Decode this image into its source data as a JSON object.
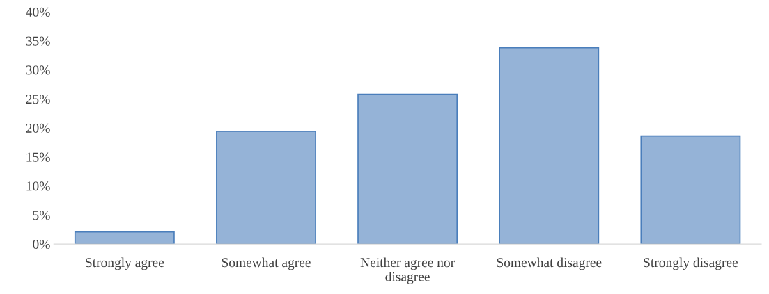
{
  "chart_data": {
    "type": "bar",
    "categories": [
      "Strongly agree",
      "Somewhat agree",
      "Neither agree nor disagree",
      "Somewhat disagree",
      "Strongly disagree"
    ],
    "values": [
      0.021,
      0.194,
      0.258,
      0.338,
      0.186
    ],
    "color": "#95b3d7",
    "ylim": [
      0,
      0.4
    ],
    "yticks": [
      {
        "value": 0,
        "label": "0%"
      },
      {
        "value": 0.05,
        "label": "5%"
      },
      {
        "value": 0.1,
        "label": "10%"
      },
      {
        "value": 0.15,
        "label": "15%"
      },
      {
        "value": 0.2,
        "label": "20%"
      },
      {
        "value": 0.25,
        "label": "25%"
      },
      {
        "value": 0.3,
        "label": "30%"
      },
      {
        "value": 0.35,
        "label": "35%"
      },
      {
        "value": 0.4,
        "label": "40%"
      }
    ],
    "grid": false
  }
}
